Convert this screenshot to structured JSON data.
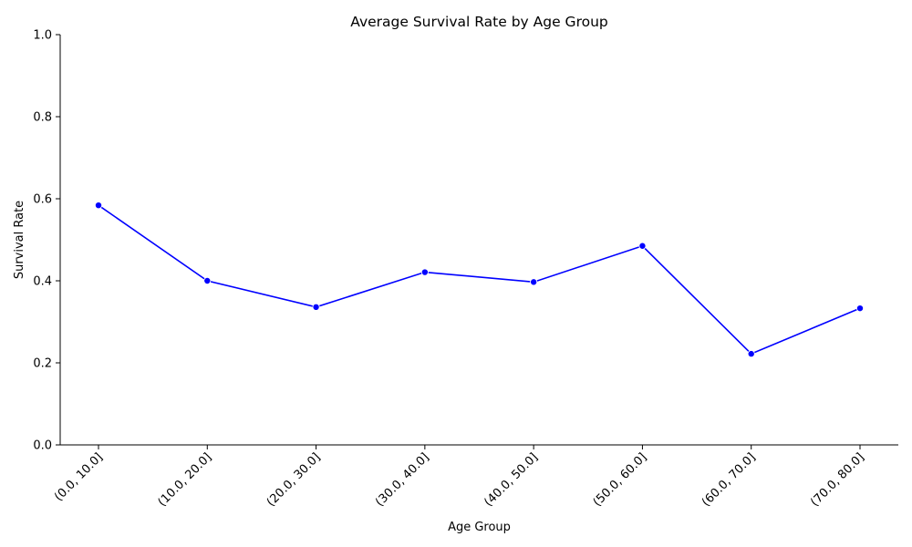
{
  "chart_data": {
    "type": "line",
    "title": "Average Survival Rate by Age Group",
    "xlabel": "Age Group",
    "ylabel": "Survival Rate",
    "categories": [
      "(0.0, 10.0]",
      "(10.0, 20.0]",
      "(20.0, 30.0]",
      "(30.0, 40.0]",
      "(40.0, 50.0]",
      "(50.0, 60.0]",
      "(60.0, 70.0]",
      "(70.0, 80.0]"
    ],
    "series": [
      {
        "values": [
          0.584,
          0.4,
          0.336,
          0.421,
          0.397,
          0.485,
          0.222,
          0.333
        ]
      }
    ],
    "ylim": [
      0,
      1
    ],
    "yticks": [
      "0.0",
      "0.2",
      "0.4",
      "0.6",
      "0.8",
      "1.0"
    ],
    "grid": false,
    "legend": "none",
    "line_color": "#0000ff",
    "marker": "circle"
  }
}
